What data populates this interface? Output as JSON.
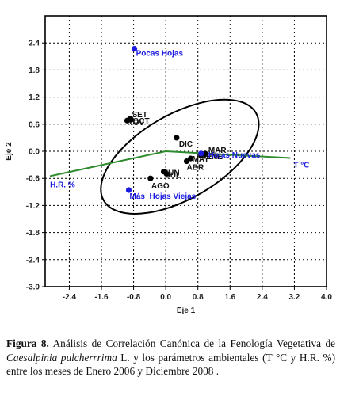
{
  "chart_data": {
    "type": "scatter",
    "title": "",
    "xlabel": "Eje 1",
    "ylabel": "Eje 2",
    "xlim": [
      -3.0,
      4.0
    ],
    "ylim": [
      -3.0,
      3.0
    ],
    "x_ticks": [
      "-2.4",
      "-1.6",
      "-0.8",
      "0.0",
      "0.8",
      "1.6",
      "2.4",
      "3.2",
      "4.0"
    ],
    "y_ticks": [
      "2.4",
      "1.8",
      "1.2",
      "0.6",
      "0.0",
      "-0.6",
      "-1.2",
      "-1.8",
      "-2.4",
      "-3.0"
    ],
    "grid": true,
    "series": [
      {
        "name": "",
        "marker": "black-dot",
        "points": [
          {
            "x": -0.88,
            "y": 0.72,
            "label": "SET"
          },
          {
            "x": -0.96,
            "y": 0.68,
            "label": "NOV"
          },
          {
            "x": -0.86,
            "y": 0.7,
            "label": "OCT"
          },
          {
            "x": 0.27,
            "y": 0.3,
            "label": "DIC"
          },
          {
            "x": -0.05,
            "y": -0.45,
            "label": "JUN"
          },
          {
            "x": 0.02,
            "y": -0.5,
            "label": "JUL"
          },
          {
            "x": -0.38,
            "y": -0.6,
            "label": "AGO"
          },
          {
            "x": 0.52,
            "y": -0.22,
            "label": "ABR"
          },
          {
            "x": 0.62,
            "y": -0.16,
            "label": "MAY"
          },
          {
            "x": 0.88,
            "y": -0.1,
            "label": "FEB"
          },
          {
            "x": 0.95,
            "y": -0.07,
            "label": "ENE"
          },
          {
            "x": 0.98,
            "y": -0.05,
            "label": "MAR"
          }
        ]
      },
      {
        "name": "",
        "marker": "blue-dot",
        "points": [
          {
            "x": -0.78,
            "y": 2.27,
            "label": "Pocas Hojas"
          },
          {
            "x": 0.88,
            "y": -0.05,
            "label": "Hojas Nuevas"
          },
          {
            "x": -0.92,
            "y": -0.86,
            "label": "Más_Hojas Viejas"
          }
        ]
      }
    ],
    "vectors": [
      {
        "label": "T °C",
        "x": 3.1,
        "y": -0.15
      },
      {
        "label": "H.R. %",
        "x": -2.88,
        "y": -0.55
      }
    ],
    "ellipse": {
      "cx": 0.35,
      "cy": -0.12,
      "rx": 2.3,
      "ry": 1.1,
      "angle_deg": -30
    },
    "colors": {
      "points": "#000000",
      "blue": "#1a1ae0",
      "vectors": "#2e8b2e",
      "grid": "#000000",
      "plot_bg": "#ffffff"
    }
  },
  "caption": {
    "figure_label": "Figura 8.",
    "text_before_species": "Análisis de Correlación Canónica de la Fenología Vegetativa de",
    "species": "Caesalpinia pulcherrrima",
    "text_after_species": "L. y los parámetros ambientales (T °C y H.R. %) entre los meses de Enero 2006 y Diciembre 2008 ."
  }
}
